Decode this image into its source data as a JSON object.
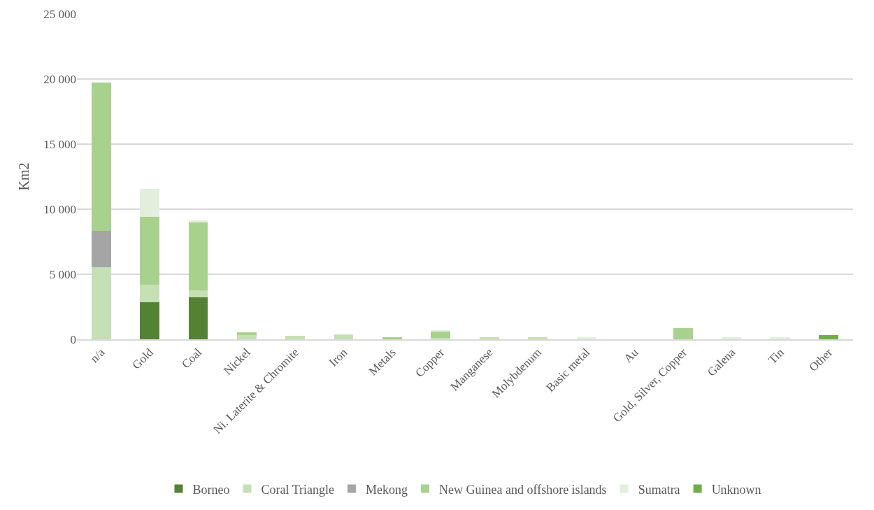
{
  "chart_data": {
    "type": "bar",
    "stacked": true,
    "ylabel": "Km2",
    "categories": [
      "n/a",
      "Gold",
      "Coal",
      "Nickel",
      "Ni. Laterite & Chromite",
      "Iron",
      "Metals",
      "Copper",
      "Manganese",
      "Molybdenum",
      "Basic metal",
      "Au",
      "Gold, Silver, Copper",
      "Galena",
      "Tin",
      "Other"
    ],
    "series": [
      {
        "name": "Borneo",
        "color": "#548235",
        "values": [
          0,
          2850,
          3210,
          0,
          0,
          0,
          0,
          0,
          0,
          0,
          0,
          0,
          0,
          0,
          0,
          0
        ]
      },
      {
        "name": "Coral Triangle",
        "color": "#c5e0b4",
        "values": [
          5520,
          1320,
          560,
          300,
          280,
          330,
          0,
          100,
          170,
          170,
          0,
          0,
          0,
          0,
          0,
          0
        ]
      },
      {
        "name": "Mekong",
        "color": "#a5a5a5",
        "values": [
          2820,
          0,
          0,
          0,
          0,
          0,
          0,
          0,
          0,
          0,
          0,
          0,
          0,
          0,
          0,
          0
        ]
      },
      {
        "name": "New Guinea and offshore islands",
        "color": "#a9d18e",
        "values": [
          11380,
          5220,
          5210,
          260,
          0,
          0,
          170,
          470,
          0,
          0,
          0,
          0,
          840,
          0,
          0,
          0
        ]
      },
      {
        "name": "Sumatra",
        "color": "#e2efda",
        "values": [
          0,
          2160,
          150,
          0,
          0,
          120,
          0,
          130,
          0,
          0,
          150,
          0,
          0,
          150,
          150,
          0
        ]
      },
      {
        "name": "Unknown",
        "color": "#70ad47",
        "values": [
          0,
          0,
          0,
          0,
          0,
          0,
          0,
          0,
          0,
          0,
          0,
          0,
          0,
          0,
          0,
          300
        ]
      }
    ],
    "ylim": [
      0,
      25000
    ],
    "yticks": [
      {
        "value": 0,
        "label": "0"
      },
      {
        "value": 5000,
        "label": "5 000"
      },
      {
        "value": 10000,
        "label": "10 000"
      },
      {
        "value": 15000,
        "label": "15 000"
      },
      {
        "value": 20000,
        "label": "20 000"
      },
      {
        "value": 25000,
        "label": "25 000"
      }
    ],
    "grid": "y",
    "legend": "bottom"
  }
}
